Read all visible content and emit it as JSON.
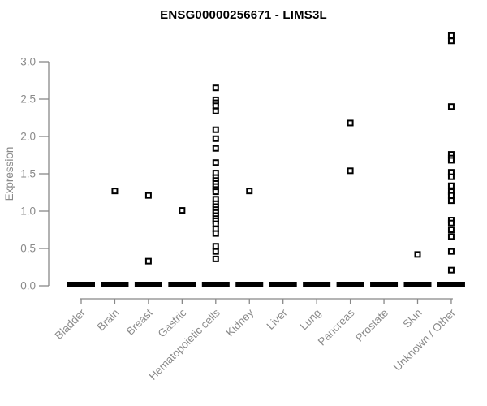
{
  "chart_data": {
    "type": "scatter",
    "variant": "strip-plot",
    "title": "ENSG00000256671 - LIMS3L",
    "xlabel": "",
    "ylabel": "Expression",
    "ylim": [
      0,
      3.4
    ],
    "yticks": [
      0.0,
      0.5,
      1.0,
      1.5,
      2.0,
      2.5,
      3.0
    ],
    "grid": false,
    "legend": false,
    "marker": "open-square",
    "colors": {
      "title": "#000000",
      "axis_line": "#888888",
      "tick_label": "#8a8a8a",
      "marker": "#000000",
      "background": "#ffffff"
    },
    "categories": [
      "Bladder",
      "Brain",
      "Breast",
      "Gastric",
      "Hematopoietic cells",
      "Kidney",
      "Liver",
      "Lung",
      "Pancreas",
      "Prostate",
      "Skin",
      "Unknown / Other"
    ],
    "series": [
      {
        "category": "Bladder",
        "zero_cluster": true,
        "points": []
      },
      {
        "category": "Brain",
        "zero_cluster": true,
        "points": [
          1.27
        ]
      },
      {
        "category": "Breast",
        "zero_cluster": true,
        "points": [
          1.21,
          0.33
        ]
      },
      {
        "category": "Gastric",
        "zero_cluster": true,
        "points": [
          1.01
        ]
      },
      {
        "category": "Hematopoietic cells",
        "zero_cluster": true,
        "points": [
          2.65,
          2.49,
          2.45,
          2.41,
          2.34,
          2.09,
          1.97,
          1.84,
          1.65,
          1.51,
          1.45,
          1.41,
          1.37,
          1.33,
          1.29,
          1.26,
          1.16,
          1.1,
          1.06,
          1.02,
          0.98,
          0.94,
          0.9,
          0.87,
          0.83,
          0.76,
          0.7,
          0.53,
          0.46,
          0.36
        ]
      },
      {
        "category": "Kidney",
        "zero_cluster": true,
        "points": [
          1.27
        ]
      },
      {
        "category": "Liver",
        "zero_cluster": true,
        "points": []
      },
      {
        "category": "Lung",
        "zero_cluster": true,
        "points": []
      },
      {
        "category": "Pancreas",
        "zero_cluster": true,
        "points": [
          2.18,
          1.54
        ]
      },
      {
        "category": "Prostate",
        "zero_cluster": true,
        "points": []
      },
      {
        "category": "Skin",
        "zero_cluster": true,
        "points": [
          0.42
        ]
      },
      {
        "category": "Unknown / Other",
        "zero_cluster": true,
        "points": [
          3.35,
          3.28,
          2.4,
          1.76,
          1.71,
          1.68,
          1.52,
          1.46,
          1.34,
          1.26,
          1.21,
          1.14,
          0.88,
          0.84,
          0.75,
          0.66,
          0.46,
          0.21
        ]
      }
    ]
  }
}
